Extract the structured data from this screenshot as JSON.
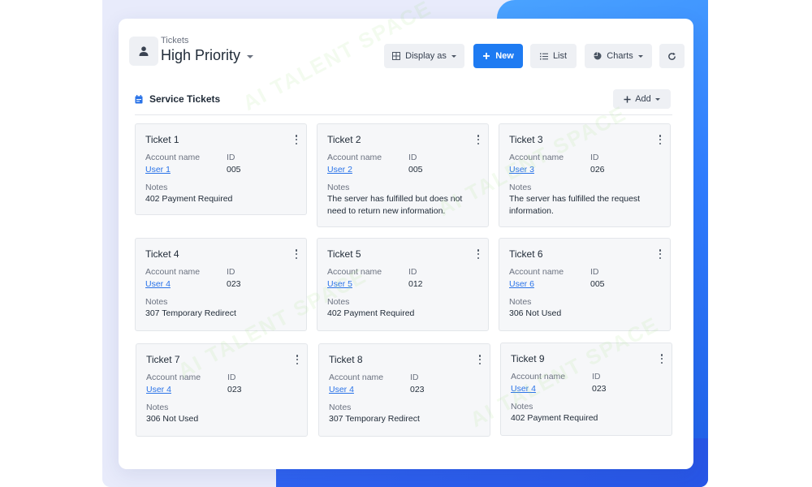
{
  "header": {
    "breadcrumb": "Tickets",
    "title": "High Priority"
  },
  "toolbar": {
    "display_as": "Display as",
    "new": "New",
    "list": "List",
    "charts": "Charts"
  },
  "section": {
    "title": "Service Tickets",
    "add": "Add"
  },
  "field_labels": {
    "account": "Account name",
    "id": "ID",
    "notes": "Notes"
  },
  "tickets": [
    {
      "name": "Ticket 1",
      "user": "User 1",
      "id": "005",
      "notes": "402 Payment Required"
    },
    {
      "name": "Ticket 2",
      "user": "User 2",
      "id": "005",
      "notes": "The server has fulfilled but does not need to return new information."
    },
    {
      "name": "Ticket 3",
      "user": "User 3",
      "id": "026",
      "notes": "The server has fulfilled the request information."
    },
    {
      "name": "Ticket 4",
      "user": "User 4",
      "id": "023",
      "notes": "307 Temporary Redirect"
    },
    {
      "name": "Ticket 5",
      "user": "User 5",
      "id": "012",
      "notes": "402 Payment Required"
    },
    {
      "name": "Ticket 6",
      "user": "User 6",
      "id": "005",
      "notes": "306 Not Used"
    },
    {
      "name": "Ticket 7",
      "user": "User 4",
      "id": "023",
      "notes": "306 Not Used"
    },
    {
      "name": "Ticket 8",
      "user": "User 4",
      "id": "023",
      "notes": "307 Temporary Redirect"
    },
    {
      "name": "Ticket 9",
      "user": "User 4",
      "id": "023",
      "notes": "402 Payment Required"
    }
  ],
  "colors": {
    "accent": "#1e7bf2",
    "link": "#2a73e8"
  },
  "watermark": "AI TALENT SPACE"
}
